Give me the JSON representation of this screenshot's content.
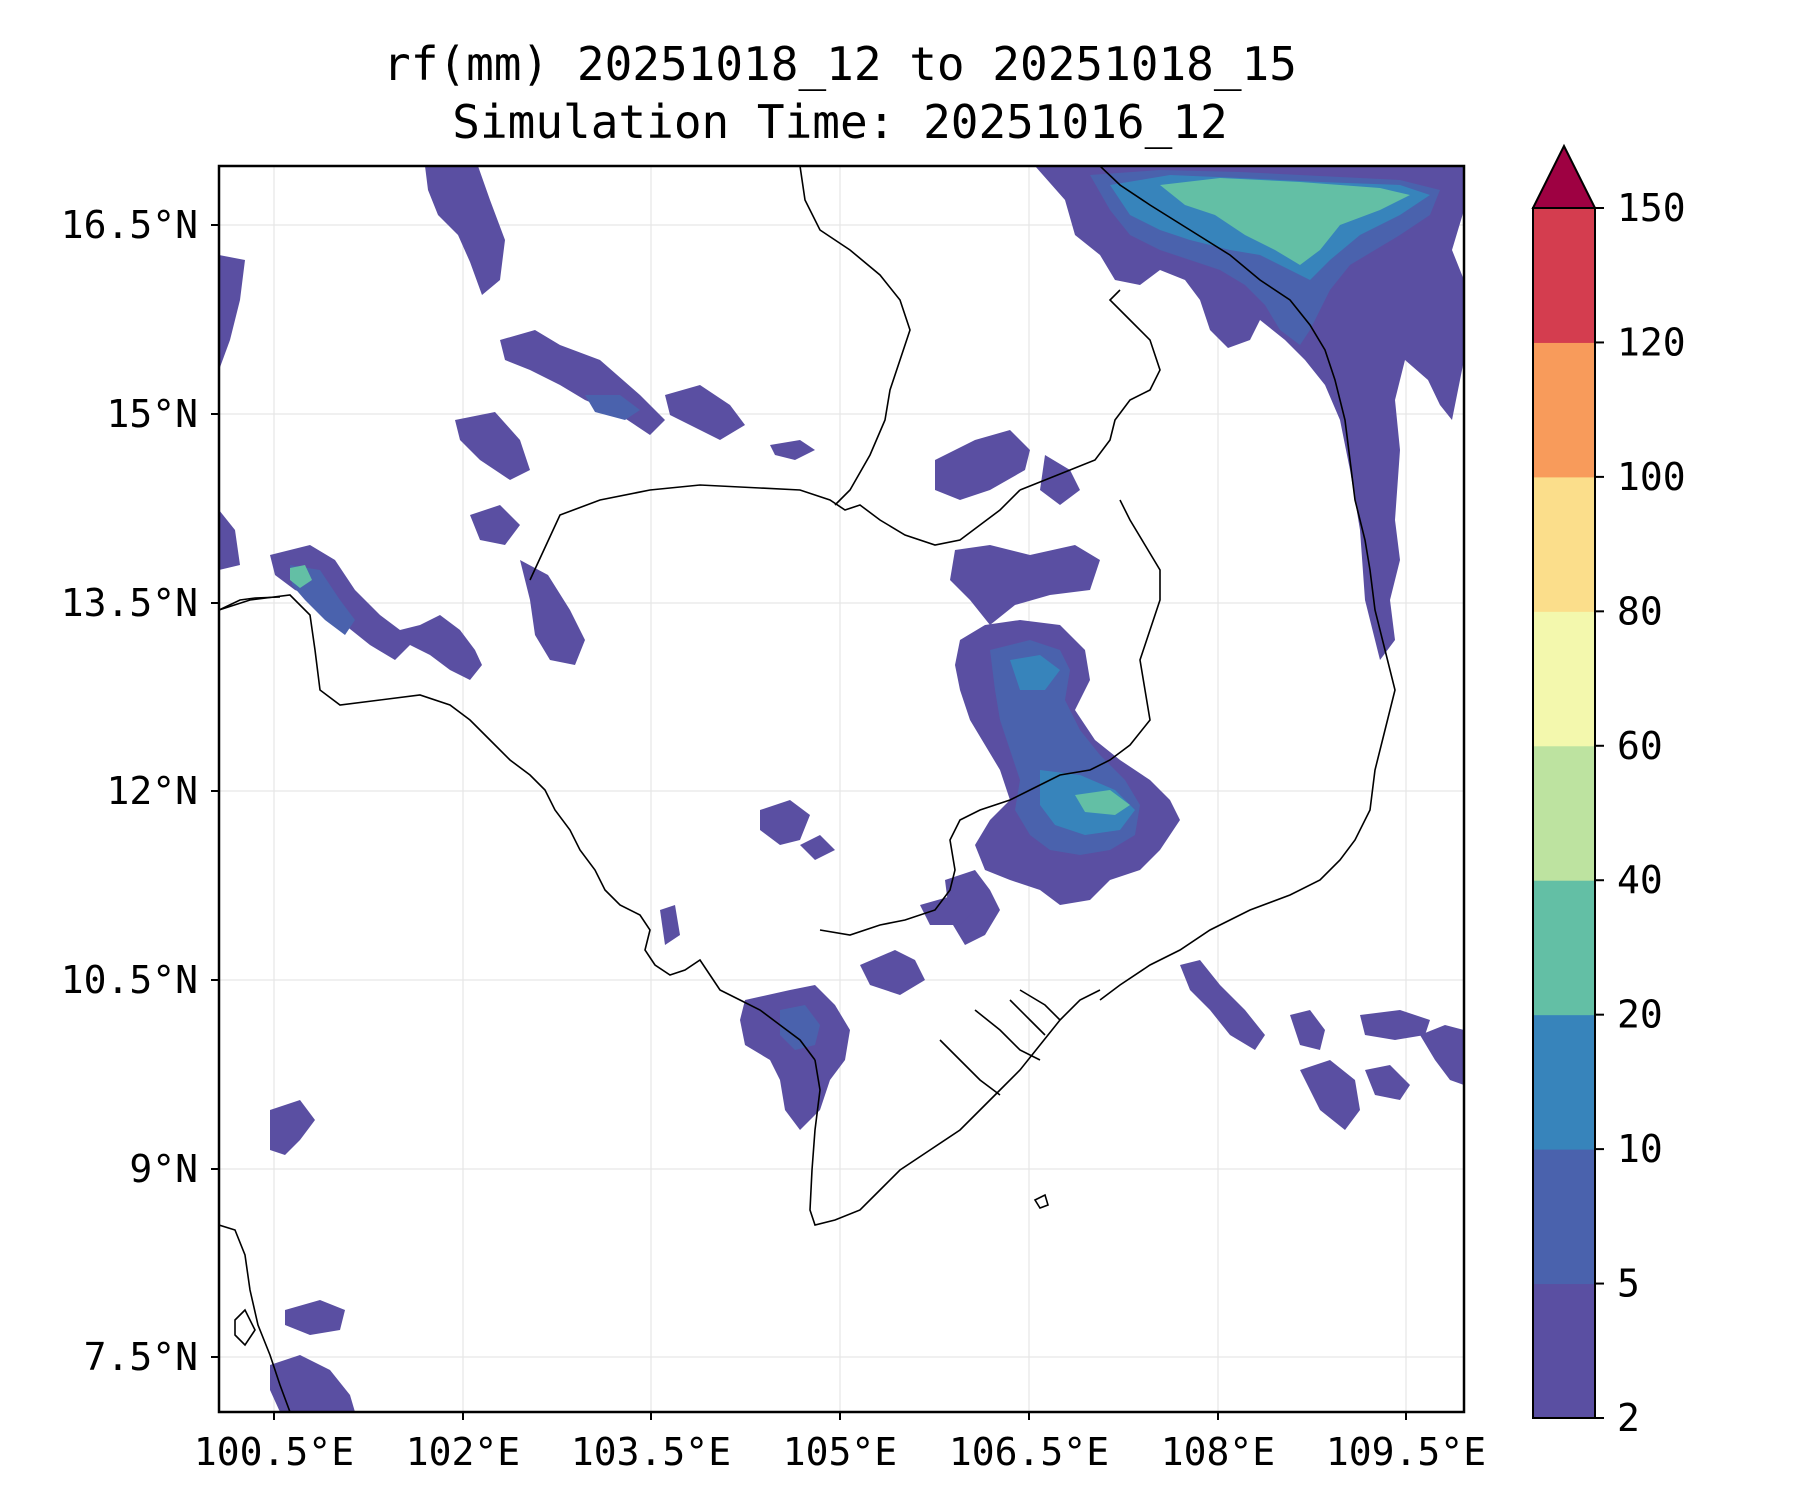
{
  "title": {
    "line1": "rf(mm) 20251018_12 to 20251018_15",
    "line2": "Simulation Time: 20251016_12"
  },
  "map": {
    "region": "Cambodia and surrounding area",
    "lon_range": [
      99.8,
      110.0
    ],
    "lat_range": [
      6.95,
      16.85
    ],
    "x_ticks": [
      "100.5°E",
      "102°E",
      "103.5°E",
      "105°E",
      "106.5°E",
      "108°E",
      "109.5°E"
    ],
    "y_ticks": [
      "16.5°N",
      "15°N",
      "13.5°N",
      "12°N",
      "10.5°N",
      "9°N",
      "7.5°N"
    ]
  },
  "colorbar": {
    "levels": [
      "2",
      "5",
      "10",
      "20",
      "40",
      "60",
      "80",
      "100",
      "120",
      "150"
    ],
    "colors": [
      "#5a4fa2",
      "#4a62ad",
      "#3784bb",
      "#63bfa5",
      "#bde3a0",
      "#f3f8ad",
      "#fbde8b",
      "#f89b5b",
      "#d43d4f",
      "#9e0142"
    ],
    "extend": "max"
  },
  "colors": {
    "coast": "#000000",
    "grid": "#e6e6e6",
    "frame": "#000000"
  }
}
